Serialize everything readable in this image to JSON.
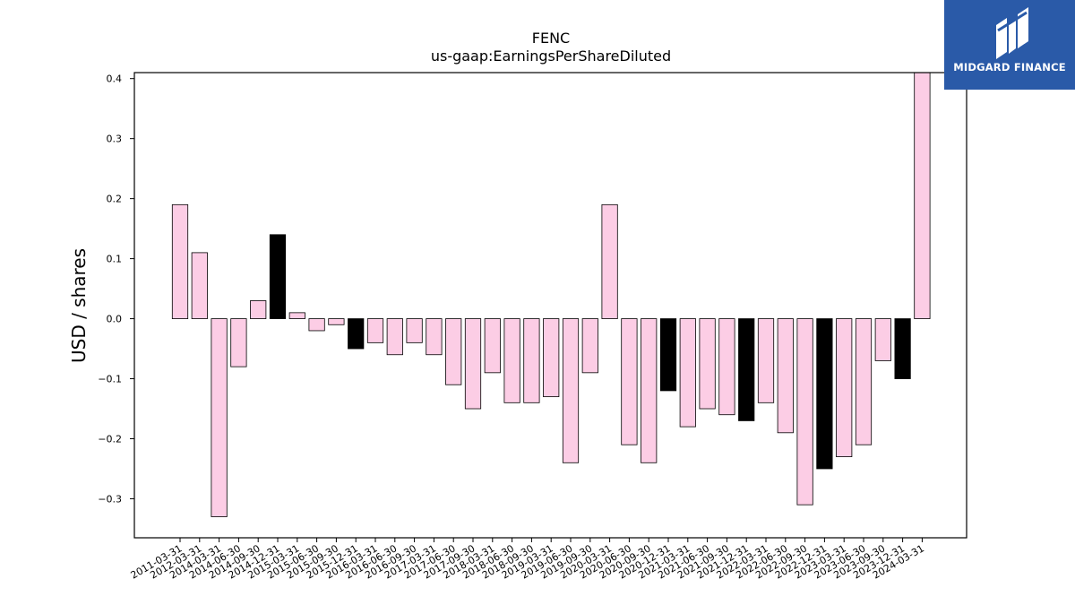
{
  "brand": {
    "logo_icon": "midgard-m-icon",
    "name": "MIDGARD FINANCE",
    "background": "#2a5aa8"
  },
  "chart_data": {
    "type": "bar",
    "title": "FENC",
    "subtitle": "us-gaap:EarningsPerShareDiluted",
    "xlabel": "",
    "ylabel": "USD / shares",
    "ylim": [
      -0.365,
      0.41
    ],
    "yticks": [
      -0.3,
      -0.2,
      -0.1,
      0.0,
      0.1,
      0.2,
      0.3,
      0.4
    ],
    "grid": false,
    "colors": {
      "default": "#fccde5",
      "highlight": "#000000",
      "edge": "#000000"
    },
    "categories": [
      "2011-03-31",
      "2012-03-31",
      "2014-03-31",
      "2014-06-30",
      "2014-09-30",
      "2014-12-31",
      "2015-03-31",
      "2015-06-30",
      "2015-09-30",
      "2015-12-31",
      "2016-03-31",
      "2016-06-30",
      "2016-09-30",
      "2017-03-31",
      "2017-06-30",
      "2017-09-30",
      "2018-03-31",
      "2018-06-30",
      "2018-09-30",
      "2019-03-31",
      "2019-06-30",
      "2019-09-30",
      "2020-03-31",
      "2020-06-30",
      "2020-09-30",
      "2020-12-31",
      "2021-03-31",
      "2021-06-30",
      "2021-09-30",
      "2021-12-31",
      "2022-03-31",
      "2022-06-30",
      "2022-09-30",
      "2022-12-31",
      "2023-03-31",
      "2023-06-30",
      "2023-09-30",
      "2023-12-31",
      "2024-03-31"
    ],
    "values": [
      0.19,
      0.11,
      -0.33,
      -0.08,
      0.03,
      0.14,
      0.01,
      -0.02,
      -0.01,
      -0.05,
      -0.04,
      -0.06,
      -0.04,
      -0.06,
      -0.11,
      -0.15,
      -0.09,
      -0.14,
      -0.14,
      -0.13,
      -0.24,
      -0.09,
      0.19,
      -0.21,
      -0.24,
      -0.12,
      -0.18,
      -0.15,
      -0.16,
      -0.17,
      -0.14,
      -0.19,
      -0.31,
      -0.25,
      -0.23,
      -0.21,
      -0.07,
      -0.1,
      0.42
    ],
    "highlighted": [
      "2014-12-31",
      "2015-12-31",
      "2020-12-31",
      "2021-12-31",
      "2022-12-31",
      "2023-12-31"
    ]
  }
}
